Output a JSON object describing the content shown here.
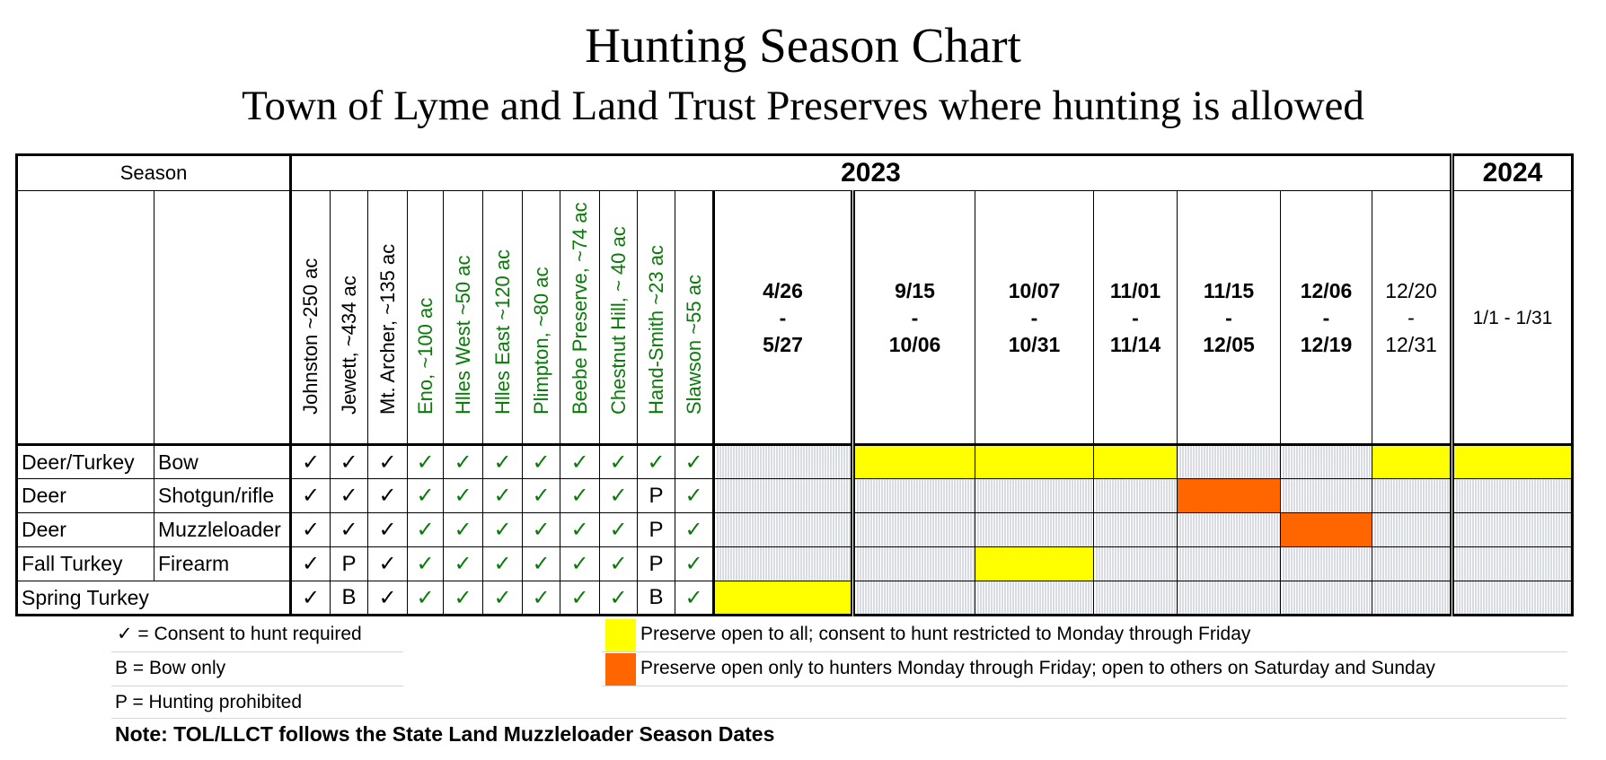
{
  "title": "Hunting Season Chart",
  "subtitle": "Town of Lyme and Land Trust Preserves where hunting is allowed",
  "header": {
    "season": "Season",
    "year_2023": "2023",
    "year_2024": "2024"
  },
  "preserves": [
    {
      "label": "Johnston ~250 ac",
      "color": "#000000"
    },
    {
      "label": "Jewett, ~434 ac",
      "color": "#000000"
    },
    {
      "label": "Mt. Archer, ~135 ac",
      "color": "#000000"
    },
    {
      "label": "Eno, ~100 ac",
      "color": "#0a7a0a"
    },
    {
      "label": "Hlles West ~50 ac",
      "color": "#0a7a0a"
    },
    {
      "label": "Hlles East ~120 ac",
      "color": "#0a7a0a"
    },
    {
      "label": "Plimpton, ~80 ac",
      "color": "#0a7a0a"
    },
    {
      "label": "Beebe Preserve, ~74 ac",
      "color": "#0a7a0a"
    },
    {
      "label": "Chestnut Hill, ~ 40 ac",
      "color": "#0a7a0a"
    },
    {
      "label": "Hand-Smith ~23 ac",
      "color": "#0a7a0a"
    },
    {
      "label": "Slawson ~55 ac",
      "color": "#0a7a0a"
    }
  ],
  "periods": [
    {
      "start": "4/26",
      "sep": "-",
      "end": "5/27"
    },
    {
      "start": "9/15",
      "sep": "-",
      "end": "10/06"
    },
    {
      "start": "10/07",
      "sep": "-",
      "end": "10/31"
    },
    {
      "start": "11/01",
      "sep": "-",
      "end": "11/14"
    },
    {
      "start": "11/15",
      "sep": "-",
      "end": "12/05"
    },
    {
      "start": "12/06",
      "sep": "-",
      "end": "12/19"
    },
    {
      "start": "12/20",
      "sep": "-",
      "end": "12/31"
    },
    {
      "range": "1/1 - 1/31"
    }
  ],
  "seasons": [
    {
      "game": "Deer/Turkey",
      "weapon": "Bow",
      "marks": [
        "✓",
        "✓",
        "✓",
        "✓",
        "✓",
        "✓",
        "✓",
        "✓",
        "✓",
        "✓",
        "✓"
      ],
      "periods": [
        "closed",
        "yellow",
        "yellow",
        "yellow",
        "closed",
        "closed",
        "yellow",
        "yellow"
      ]
    },
    {
      "game": "Deer",
      "weapon": "Shotgun/rifle",
      "marks": [
        "✓",
        "✓",
        "✓",
        "✓",
        "✓",
        "✓",
        "✓",
        "✓",
        "✓",
        "P",
        "✓"
      ],
      "periods": [
        "closed",
        "closed",
        "closed",
        "closed",
        "orange",
        "closed",
        "closed",
        "closed"
      ]
    },
    {
      "game": "Deer",
      "weapon": "Muzzleloader",
      "marks": [
        "✓",
        "✓",
        "✓",
        "✓",
        "✓",
        "✓",
        "✓",
        "✓",
        "✓",
        "P",
        "✓"
      ],
      "periods": [
        "closed",
        "closed",
        "closed",
        "closed",
        "closed",
        "orange",
        "closed",
        "closed"
      ]
    },
    {
      "game": "Fall Turkey",
      "weapon": "Firearm",
      "marks": [
        "✓",
        "P",
        "✓",
        "✓",
        "✓",
        "✓",
        "✓",
        "✓",
        "✓",
        "P",
        "✓"
      ],
      "periods": [
        "closed",
        "closed",
        "yellow",
        "closed",
        "closed",
        "closed",
        "closed",
        "closed"
      ]
    },
    {
      "game": "Spring Turkey",
      "weapon": "",
      "marks": [
        "✓",
        "B",
        "✓",
        "✓",
        "✓",
        "✓",
        "✓",
        "✓",
        "✓",
        "B",
        "✓"
      ],
      "periods": [
        "yellow",
        "closed",
        "closed",
        "closed",
        "closed",
        "closed",
        "closed",
        "closed"
      ]
    }
  ],
  "legend": {
    "check": "✓ = Consent to hunt required",
    "bow": "B = Bow  only",
    "prohibited": "P = Hunting prohibited",
    "yellow": "Preserve open to all; consent to hunt restricted to Monday through Friday",
    "orange": "Preserve open only to hunters Monday through Friday; open to others on Saturday and Sunday"
  },
  "note": "Note: TOL/LLCT follows the State Land Muzzleloader Season Dates",
  "colors": {
    "yellow": "#ffff00",
    "orange": "#ff6600",
    "green_text": "#0a7a0a",
    "hatch_line": "#b3b7c6"
  }
}
